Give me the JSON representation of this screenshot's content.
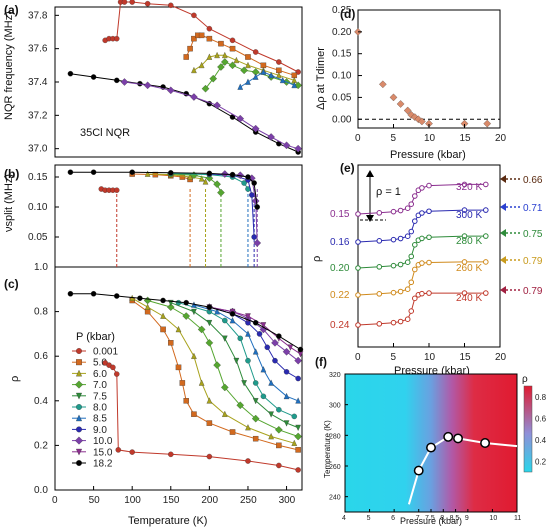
{
  "colors": {
    "0.001": "#c0392b",
    "5.0": "#d2691e",
    "6.0": "#a8a21c",
    "7.0": "#55a630",
    "7.5": "#2e8b3a",
    "8.0": "#1f9b8c",
    "8.5": "#1f6fbf",
    "9.0": "#2a2ab0",
    "10.0": "#7b3fa8",
    "15.0": "#8b2f8f",
    "18.2": "#000000"
  },
  "chart_data": [
    {
      "panel": "(a)",
      "type": "scatter",
      "xlabel": "",
      "ylabel": "NQR frequency (MHz)",
      "annotation": "35Cl NQR",
      "xlim": [
        0,
        320
      ],
      "ylim": [
        36.95,
        37.85
      ],
      "yticks": [
        "37.8",
        "37.6",
        "37.4",
        "37.2",
        "37.0"
      ],
      "series": [
        {
          "name": "0.001",
          "x": [
            65,
            70,
            75,
            80,
            85,
            90,
            100,
            120,
            150,
            180,
            200,
            230,
            260,
            290,
            315
          ],
          "y": [
            37.65,
            37.66,
            37.66,
            37.66,
            37.88,
            37.88,
            37.88,
            37.87,
            37.86,
            37.8,
            37.72,
            37.65,
            37.58,
            37.52,
            37.46
          ]
        },
        {
          "name": "5.0",
          "x": [
            170,
            175,
            180,
            185,
            190,
            200,
            215,
            230,
            250,
            270,
            290,
            310
          ],
          "y": [
            37.55,
            37.6,
            37.66,
            37.68,
            37.68,
            37.66,
            37.63,
            37.6,
            37.55,
            37.5,
            37.47,
            37.44
          ]
        },
        {
          "name": "6.0",
          "x": [
            180,
            190,
            200,
            210,
            220,
            235,
            250,
            270,
            290,
            310
          ],
          "y": [
            37.47,
            37.5,
            37.55,
            37.56,
            37.56,
            37.53,
            37.5,
            37.47,
            37.44,
            37.41
          ]
        },
        {
          "name": "7.0",
          "x": [
            195,
            205,
            215,
            220,
            230,
            245,
            260,
            280,
            300,
            315
          ],
          "y": [
            37.36,
            37.42,
            37.49,
            37.52,
            37.5,
            37.47,
            37.46,
            37.43,
            37.4,
            37.38
          ]
        },
        {
          "name": "8.5",
          "x": [
            240,
            250,
            260,
            270,
            280,
            295,
            310
          ],
          "y": [
            37.37,
            37.4,
            37.43,
            37.46,
            37.44,
            37.41,
            37.38
          ]
        },
        {
          "name": "18.2",
          "x": [
            20,
            50,
            80,
            110,
            140,
            170,
            200,
            230,
            260,
            290,
            315
          ],
          "y": [
            37.45,
            37.43,
            37.41,
            37.39,
            37.37,
            37.33,
            37.27,
            37.19,
            37.1,
            37.03,
            36.98
          ]
        },
        {
          "name": "10.0",
          "x": [
            90,
            120,
            150,
            180,
            210,
            240,
            260,
            280,
            300,
            315
          ],
          "y": [
            37.4,
            37.38,
            37.35,
            37.31,
            37.26,
            37.18,
            37.12,
            37.07,
            37.02,
            37.0
          ]
        }
      ]
    },
    {
      "panel": "(b)",
      "type": "scatter",
      "xlabel": "",
      "ylabel": "νsplit (MHz)",
      "xlim": [
        0,
        320
      ],
      "ylim": [
        0,
        0.17
      ],
      "yticks": [
        "0.15",
        "0.10",
        "0.05"
      ],
      "dashed_x": [
        80,
        175,
        195,
        215,
        250,
        258,
        262
      ],
      "series": [
        {
          "name": "0.001",
          "x": [
            60,
            65,
            70,
            75,
            80
          ],
          "y": [
            0.13,
            0.128,
            0.128,
            0.128,
            0.128
          ]
        },
        {
          "name": "5.0",
          "x": [
            100,
            130,
            150,
            165,
            175
          ],
          "y": [
            0.155,
            0.154,
            0.152,
            0.15,
            0.146
          ]
        },
        {
          "name": "6.0",
          "x": [
            120,
            150,
            175,
            190,
            195
          ],
          "y": [
            0.155,
            0.154,
            0.15,
            0.147,
            0.142
          ]
        },
        {
          "name": "7.0",
          "x": [
            150,
            180,
            200,
            210,
            215
          ],
          "y": [
            0.155,
            0.153,
            0.148,
            0.138,
            0.124
          ]
        },
        {
          "name": "8.0",
          "x": [
            150,
            200,
            230,
            245,
            250
          ],
          "y": [
            0.156,
            0.154,
            0.15,
            0.14,
            0.13
          ]
        },
        {
          "name": "9.0",
          "x": [
            200,
            230,
            250,
            255,
            258
          ],
          "y": [
            0.155,
            0.153,
            0.145,
            0.12,
            0.05
          ]
        },
        {
          "name": "10.0",
          "x": [
            220,
            240,
            255,
            260,
            262
          ],
          "y": [
            0.155,
            0.153,
            0.148,
            0.11,
            0.04
          ]
        },
        {
          "name": "18.2",
          "x": [
            20,
            50,
            100,
            150,
            200,
            230,
            250,
            258,
            262
          ],
          "y": [
            0.158,
            0.158,
            0.158,
            0.157,
            0.156,
            0.154,
            0.15,
            0.14,
            0.1
          ]
        }
      ]
    },
    {
      "panel": "(c)",
      "type": "line",
      "xlabel": "Temperature (K)",
      "ylabel": "ρ",
      "xlim": [
        0,
        320
      ],
      "ylim": [
        0,
        1
      ],
      "xticks": [
        "0",
        "50",
        "100",
        "150",
        "200",
        "250",
        "300"
      ],
      "yticks": [
        "1.0",
        "0.8",
        "0.6",
        "0.4",
        "0.2",
        "0.0"
      ],
      "legend_title": "P (kbar)",
      "series": [
        {
          "name": "0.001",
          "x": [
            65,
            70,
            75,
            80,
            82,
            100,
            150,
            200,
            250,
            290,
            315
          ],
          "y": [
            0.57,
            0.56,
            0.55,
            0.52,
            0.18,
            0.17,
            0.16,
            0.15,
            0.13,
            0.11,
            0.09
          ]
        },
        {
          "name": "5.0",
          "x": [
            100,
            120,
            140,
            150,
            160,
            165,
            170,
            180,
            200,
            230,
            260,
            290,
            315
          ],
          "y": [
            0.85,
            0.8,
            0.72,
            0.66,
            0.55,
            0.48,
            0.4,
            0.34,
            0.3,
            0.26,
            0.23,
            0.2,
            0.18
          ]
        },
        {
          "name": "6.0",
          "x": [
            100,
            120,
            140,
            160,
            180,
            190,
            200,
            220,
            250,
            280,
            310
          ],
          "y": [
            0.86,
            0.82,
            0.78,
            0.72,
            0.6,
            0.48,
            0.4,
            0.34,
            0.28,
            0.24,
            0.21
          ]
        },
        {
          "name": "7.0",
          "x": [
            120,
            150,
            170,
            190,
            200,
            210,
            220,
            240,
            260,
            290,
            315
          ],
          "y": [
            0.85,
            0.82,
            0.78,
            0.72,
            0.66,
            0.56,
            0.46,
            0.38,
            0.32,
            0.27,
            0.24
          ]
        },
        {
          "name": "7.5",
          "x": [
            150,
            180,
            200,
            220,
            235,
            245,
            260,
            280,
            300,
            315
          ],
          "y": [
            0.84,
            0.8,
            0.75,
            0.68,
            0.58,
            0.48,
            0.4,
            0.34,
            0.3,
            0.28
          ]
        },
        {
          "name": "8.0",
          "x": [
            160,
            200,
            220,
            240,
            250,
            260,
            270,
            290,
            310
          ],
          "y": [
            0.84,
            0.8,
            0.76,
            0.68,
            0.58,
            0.48,
            0.42,
            0.36,
            0.33
          ]
        },
        {
          "name": "8.5",
          "x": [
            180,
            210,
            230,
            250,
            260,
            270,
            280,
            300,
            315
          ],
          "y": [
            0.83,
            0.8,
            0.76,
            0.7,
            0.62,
            0.54,
            0.48,
            0.42,
            0.4
          ]
        },
        {
          "name": "9.0",
          "x": [
            200,
            230,
            250,
            265,
            275,
            285,
            300,
            315
          ],
          "y": [
            0.82,
            0.79,
            0.75,
            0.7,
            0.64,
            0.58,
            0.53,
            0.5
          ]
        },
        {
          "name": "10.0",
          "x": [
            200,
            230,
            250,
            270,
            285,
            300,
            315
          ],
          "y": [
            0.82,
            0.8,
            0.77,
            0.72,
            0.66,
            0.62,
            0.58
          ]
        },
        {
          "name": "15.0",
          "x": [
            200,
            230,
            250,
            270,
            290,
            305,
            318
          ],
          "y": [
            0.82,
            0.8,
            0.78,
            0.74,
            0.68,
            0.64,
            0.61
          ]
        },
        {
          "name": "18.2",
          "x": [
            20,
            50,
            80,
            110,
            140,
            170,
            200,
            230,
            260,
            290,
            318
          ],
          "y": [
            0.88,
            0.88,
            0.87,
            0.86,
            0.85,
            0.84,
            0.82,
            0.79,
            0.75,
            0.69,
            0.63
          ]
        }
      ]
    },
    {
      "panel": "(d)",
      "type": "scatter",
      "xlabel": "Pressure (kbar)",
      "ylabel": "Δρ at Tdimer",
      "xlim": [
        0,
        20
      ],
      "ylim": [
        -0.02,
        0.25
      ],
      "xticks": [
        "0",
        "5",
        "10",
        "15",
        "20"
      ],
      "yticks": [
        "0.25",
        "0.20",
        "0.15",
        "0.10",
        "0.05",
        "0.00"
      ],
      "x": [
        0.001,
        3.5,
        5.0,
        6.0,
        7.0,
        7.5,
        8.0,
        8.5,
        9.0,
        10.0,
        15.0,
        18.2
      ],
      "y": [
        0.2,
        0.08,
        0.05,
        0.035,
        0.02,
        0.01,
        0.005,
        0.0,
        -0.005,
        -0.01,
        -0.01,
        -0.01
      ]
    },
    {
      "panel": "(e)",
      "type": "line",
      "xlabel": "Pressure (kbar)",
      "ylabel": "ρ",
      "xlim": [
        0,
        20
      ],
      "xticks": [
        "0",
        "5",
        "10",
        "15",
        "20"
      ],
      "scale_label": "ρ = 1",
      "series": [
        {
          "name": "320 K",
          "offset": "0.15",
          "right": "0.66",
          "x": [
            0,
            3,
            5,
            6,
            7,
            7.5,
            8,
            8.5,
            9,
            10,
            15,
            18
          ],
          "y": [
            0.15,
            0.17,
            0.19,
            0.21,
            0.25,
            0.32,
            0.46,
            0.56,
            0.6,
            0.64,
            0.66,
            0.66
          ]
        },
        {
          "name": "300 K",
          "offset": "0.16",
          "right": "0.71",
          "x": [
            0,
            3,
            5,
            6,
            7,
            7.5,
            8,
            8.5,
            9,
            10,
            15,
            18
          ],
          "y": [
            0.16,
            0.18,
            0.2,
            0.22,
            0.26,
            0.34,
            0.52,
            0.62,
            0.66,
            0.69,
            0.71,
            0.71
          ]
        },
        {
          "name": "280 K",
          "offset": "0.20",
          "right": "0.75",
          "x": [
            0,
            3,
            5,
            6,
            7,
            7.5,
            8,
            8.5,
            9,
            10,
            15,
            18
          ],
          "y": [
            0.2,
            0.22,
            0.24,
            0.26,
            0.3,
            0.4,
            0.6,
            0.68,
            0.71,
            0.73,
            0.75,
            0.75
          ]
        },
        {
          "name": "260 K",
          "offset": "0.22",
          "right": "0.79",
          "x": [
            0,
            3,
            5,
            6,
            7,
            7.5,
            8,
            8.5,
            9,
            10,
            15,
            18
          ],
          "y": [
            0.22,
            0.24,
            0.26,
            0.28,
            0.32,
            0.44,
            0.66,
            0.74,
            0.77,
            0.78,
            0.79,
            0.79
          ]
        },
        {
          "name": "240 K",
          "offset": "0.24",
          "right": "0.79",
          "x": [
            0,
            3,
            5,
            6,
            7,
            7.5,
            8,
            8.5,
            9,
            10,
            15,
            18
          ],
          "y": [
            0.24,
            0.26,
            0.28,
            0.3,
            0.34,
            0.48,
            0.7,
            0.76,
            0.78,
            0.79,
            0.79,
            0.79
          ]
        }
      ]
    },
    {
      "panel": "(f)",
      "type": "heatmap",
      "xlabel": "Pressure (kbar)",
      "ylabel": "Temperature (K)",
      "colorbar_label": "ρ",
      "xlim": [
        4,
        11
      ],
      "ylim": [
        230,
        320
      ],
      "xticks": [
        "4",
        "5",
        "6",
        "7",
        "7.5",
        "8",
        "8.5",
        "9",
        "10",
        "11"
      ],
      "yticks": [
        "320",
        "300",
        "280",
        "260",
        "240"
      ],
      "colorbar_ticks": [
        "0.8",
        "0.6",
        "0.4",
        "0.2"
      ],
      "boundary_x": [
        6.6,
        7.0,
        7.5,
        8.2,
        8.6,
        9.7,
        11.0
      ],
      "boundary_y": [
        235,
        257,
        272,
        279,
        278,
        275,
        273
      ],
      "markers_x": [
        7.0,
        7.5,
        8.2,
        8.6,
        9.7
      ],
      "markers_y": [
        257,
        272,
        279,
        278,
        275
      ]
    }
  ],
  "legend": {
    "title": "P (kbar)",
    "items": [
      "0.001",
      "5.0",
      "6.0",
      "7.0",
      "7.5",
      "8.0",
      "8.5",
      "9.0",
      "10.0",
      "15.0",
      "18.2"
    ]
  }
}
